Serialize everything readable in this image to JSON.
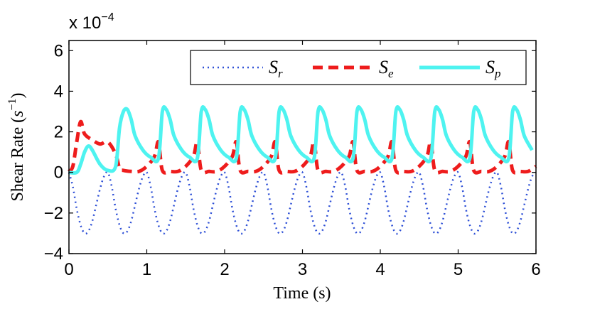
{
  "chart_data": {
    "type": "line",
    "title": "",
    "xlabel": "Time (s)",
    "ylabel": "Shear Rate (s⁻¹)",
    "ylabel_parts": {
      "text": "Shear Rate (",
      "var": "s",
      "sup": "−1",
      "close": ")"
    },
    "exponent_label": {
      "prefix": "x 10",
      "sup": "−4"
    },
    "xlim": [
      0,
      6
    ],
    "ylim": [
      -4,
      6.5
    ],
    "xticks": [
      0,
      1,
      2,
      3,
      4,
      5,
      6
    ],
    "yticks": [
      -4,
      -2,
      0,
      2,
      4,
      6
    ],
    "xtick_labels": [
      "0",
      "1",
      "2",
      "3",
      "4",
      "5",
      "6"
    ],
    "ytick_labels": [
      "−4",
      "−2",
      "0",
      "2",
      "4",
      "6"
    ],
    "grid": false,
    "legend_position": "top-right",
    "period": 0.5,
    "series": [
      {
        "name": "Sr",
        "legend_main": "S",
        "legend_sub": "r",
        "color": "#2d4fd6",
        "style": "dotted",
        "description": "periodic, oscillates between about -3.0 and 0.0",
        "x": [
          0,
          0.05,
          0.1,
          0.15,
          0.2,
          0.25,
          0.3,
          0.35,
          0.4,
          0.45,
          0.5
        ],
        "values": [
          0,
          -0.7,
          -1.8,
          -2.6,
          -3.0,
          -2.9,
          -2.4,
          -1.6,
          -0.8,
          -0.2,
          0
        ]
      },
      {
        "name": "Se",
        "legend_main": "S",
        "legend_sub": "e",
        "color": "#ee1c1c",
        "style": "dashed",
        "description": "initial peak about 2.5 at t=0.15, then periodic between about 0.0 and 1.5",
        "x": [
          0,
          0.05,
          0.1,
          0.15,
          0.2,
          0.3,
          0.4,
          0.5,
          0.6,
          0.65,
          0.7,
          0.8,
          0.9,
          1.0,
          1.1,
          1.15
        ],
        "values": [
          0.05,
          0.3,
          1.5,
          2.5,
          1.9,
          1.6,
          1.4,
          1.5,
          0.9,
          0.2,
          0.1,
          0.05,
          0.05,
          0.3,
          0.8,
          1.5
        ]
      },
      {
        "name": "Sp",
        "legend_main": "S",
        "legend_sub": "p",
        "color": "#4ef3f0",
        "style": "solid",
        "description": "starts at 0, small hump about 1.3 at t=0.25, then periodic peaks about 3.1 and troughs about 0.7",
        "x": [
          0,
          0.1,
          0.15,
          0.2,
          0.25,
          0.3,
          0.4,
          0.5,
          0.6,
          0.65,
          0.7,
          0.75,
          0.8,
          0.85,
          0.95,
          1.05,
          1.15
        ],
        "values": [
          0,
          0,
          0.4,
          1.0,
          1.3,
          1.1,
          0.4,
          0.1,
          0.3,
          2.2,
          3.0,
          3.1,
          2.6,
          1.8,
          1.1,
          0.75,
          0.7
        ]
      }
    ]
  }
}
